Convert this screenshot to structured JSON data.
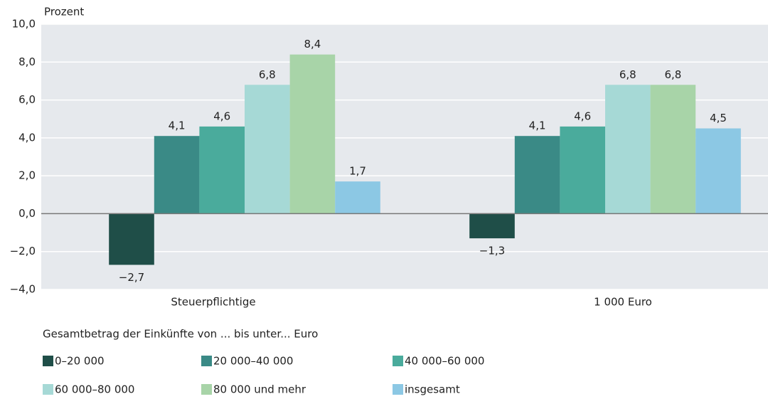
{
  "chart_data": {
    "type": "bar",
    "y_axis_label": "Prozent",
    "categories": [
      "Steuerpflichtige",
      "1 000 Euro"
    ],
    "series": [
      {
        "name": "0–20 000",
        "color": "#1f4e48",
        "values": [
          -2.7,
          -1.3
        ],
        "value_labels": [
          "−2,7",
          "−1,3"
        ]
      },
      {
        "name": "20 000–40 000",
        "color": "#3a8a86",
        "values": [
          4.1,
          4.1
        ],
        "value_labels": [
          "4,1",
          "4,1"
        ]
      },
      {
        "name": "40 000–60 000",
        "color": "#4aab9c",
        "values": [
          4.6,
          4.6
        ],
        "value_labels": [
          "4,6",
          "4,6"
        ]
      },
      {
        "name": "60 000–80 000",
        "color": "#a6d9d6",
        "values": [
          6.8,
          6.8
        ],
        "value_labels": [
          "6,8",
          "6,8"
        ]
      },
      {
        "name": "80 000 und mehr",
        "color": "#a8d4a8",
        "values": [
          8.4,
          6.8
        ],
        "value_labels": [
          "8,4",
          "6,8"
        ]
      },
      {
        "name": "insgesamt",
        "color": "#8cc8e4",
        "values": [
          1.7,
          4.5
        ],
        "value_labels": [
          "1,7",
          "4,5"
        ]
      }
    ],
    "legend_title": "Gesamtbetrag der Einkünfte von ... bis unter... Euro",
    "ylim": [
      -4,
      10
    ],
    "yticks": [
      {
        "value": -4,
        "label": "−4,0"
      },
      {
        "value": -2,
        "label": "−2,0"
      },
      {
        "value": 0,
        "label": "0,0"
      },
      {
        "value": 2,
        "label": "2,0"
      },
      {
        "value": 4,
        "label": "4,0"
      },
      {
        "value": 6,
        "label": "6,0"
      },
      {
        "value": 8,
        "label": "8,0"
      },
      {
        "value": 10,
        "label": "10,0"
      }
    ],
    "grid": true
  }
}
